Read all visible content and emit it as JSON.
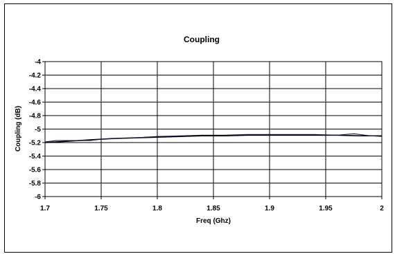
{
  "chart_data": {
    "type": "line",
    "title": "Coupling",
    "xlabel": "Freq (Ghz)",
    "ylabel": "Coupling (dB)",
    "xlim": [
      1.7,
      2.0
    ],
    "ylim": [
      -6,
      -4
    ],
    "x_ticks": [
      "1.7",
      "1.75",
      "1.8",
      "1.85",
      "1.9",
      "1.95",
      "2"
    ],
    "y_ticks": [
      "-4",
      "-4.2",
      "-4.4",
      "-4.6",
      "-4.8",
      "-5",
      "-5.2",
      "-5.4",
      "-5.6",
      "-5.8",
      "-6"
    ],
    "grid": true,
    "legend": false,
    "series": [
      {
        "color": "#000000",
        "x": [
          1.7,
          1.72,
          1.74,
          1.76,
          1.78,
          1.8,
          1.82,
          1.84,
          1.86,
          1.88,
          1.9,
          1.92,
          1.94,
          1.96,
          1.98,
          2.0
        ],
        "y": [
          -5.2,
          -5.18,
          -5.16,
          -5.14,
          -5.13,
          -5.12,
          -5.11,
          -5.1,
          -5.1,
          -5.09,
          -5.09,
          -5.09,
          -5.09,
          -5.09,
          -5.1,
          -5.1
        ]
      },
      {
        "color": "#1a1a40",
        "x": [
          1.7,
          1.71,
          1.72,
          1.74,
          1.75,
          1.76,
          1.78,
          1.8,
          1.82,
          1.84,
          1.86,
          1.88,
          1.9,
          1.92,
          1.94,
          1.96,
          1.975,
          1.98,
          1.99,
          2.0
        ],
        "y": [
          -5.19,
          -5.17,
          -5.17,
          -5.17,
          -5.15,
          -5.14,
          -5.13,
          -5.11,
          -5.1,
          -5.09,
          -5.09,
          -5.08,
          -5.08,
          -5.08,
          -5.08,
          -5.09,
          -5.07,
          -5.08,
          -5.1,
          -5.11
        ]
      }
    ]
  }
}
